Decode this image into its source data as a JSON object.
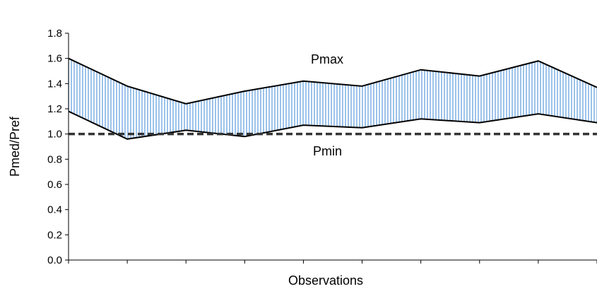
{
  "chart_data": {
    "type": "area",
    "title": "",
    "xlabel": "Observations",
    "ylabel": "Pmed/Pref",
    "ylim": [
      0,
      1.8
    ],
    "yticks": [
      "0.0",
      "0.2",
      "0.4",
      "0.6",
      "0.8",
      "1.0",
      "1.2",
      "1.4",
      "1.6",
      "1.8"
    ],
    "x": [
      1,
      2,
      3,
      4,
      5,
      6,
      7,
      8,
      9,
      10
    ],
    "series": [
      {
        "name": "Pmax",
        "values": [
          1.6,
          1.38,
          1.24,
          1.34,
          1.42,
          1.38,
          1.51,
          1.46,
          1.58,
          1.37
        ]
      },
      {
        "name": "Pmin",
        "values": [
          1.18,
          0.96,
          1.03,
          0.98,
          1.07,
          1.05,
          1.12,
          1.09,
          1.16,
          1.09
        ]
      }
    ],
    "reference_line": {
      "value": 1.0,
      "style": "dashed"
    },
    "fill": {
      "color": "#9dc3ea",
      "pattern": "vertical-hatch"
    },
    "grid": false,
    "legend": "none"
  }
}
